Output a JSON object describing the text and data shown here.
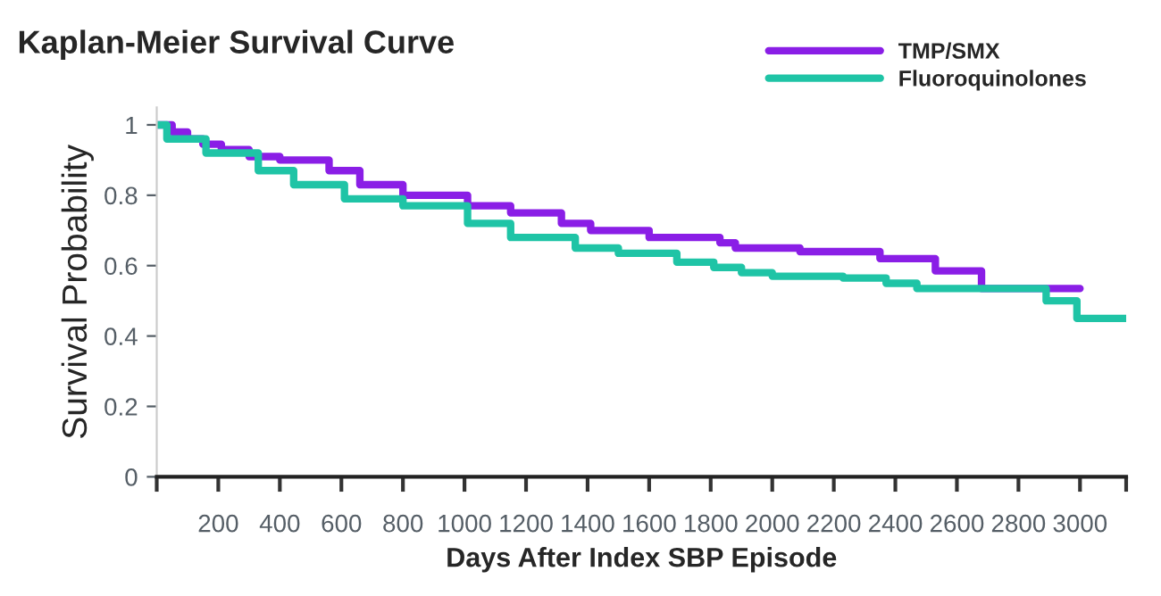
{
  "chart_data": {
    "type": "step",
    "title": "Kaplan-Meier Survival Curve",
    "xlabel": "Days After Index SBP Episode",
    "ylabel": "Survival Probability",
    "series": [
      {
        "name": "TMP/SMX",
        "color": "#8a1ee6",
        "x": [
          0,
          50,
          100,
          150,
          210,
          300,
          400,
          560,
          660,
          800,
          1010,
          1150,
          1315,
          1410,
          1600,
          1830,
          1880,
          2090,
          2350,
          2530,
          2680,
          3000
        ],
        "values": [
          1.0,
          0.98,
          0.96,
          0.945,
          0.93,
          0.91,
          0.9,
          0.87,
          0.83,
          0.8,
          0.77,
          0.75,
          0.72,
          0.7,
          0.68,
          0.665,
          0.65,
          0.64,
          0.62,
          0.585,
          0.535,
          0.535
        ]
      },
      {
        "name": "Fluoroquinolones",
        "color": "#1fc4a6",
        "x": [
          0,
          33,
          160,
          330,
          445,
          610,
          800,
          1010,
          1150,
          1360,
          1500,
          1690,
          1810,
          1900,
          2000,
          2230,
          2370,
          2470,
          2890,
          2990,
          3150
        ],
        "values": [
          1.0,
          0.96,
          0.92,
          0.87,
          0.83,
          0.79,
          0.77,
          0.72,
          0.68,
          0.65,
          0.635,
          0.61,
          0.595,
          0.58,
          0.57,
          0.565,
          0.55,
          0.535,
          0.5,
          0.45,
          0.45
        ]
      }
    ],
    "xlim": [
      0,
      3150
    ],
    "xticks": [
      {
        "value": 0,
        "label": null
      },
      200,
      400,
      600,
      800,
      1000,
      1200,
      1400,
      1600,
      1800,
      2000,
      2200,
      2400,
      2600,
      2800,
      3000,
      {
        "value": 3150,
        "label": null
      }
    ],
    "ylim": [
      0,
      1.05
    ],
    "yticks": [
      0,
      0.2,
      0.4,
      0.6,
      0.8,
      1
    ],
    "grid": false,
    "legend": "top right"
  }
}
